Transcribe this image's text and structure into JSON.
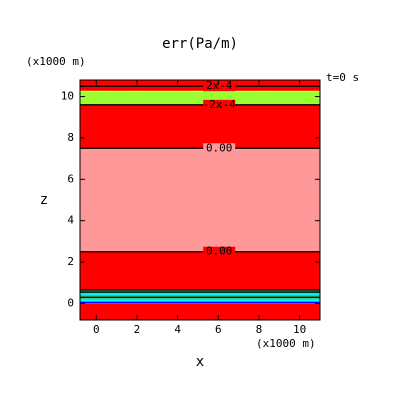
{
  "chart_data": {
    "type": "contour",
    "title": "err(Pa/m)",
    "y_unit": "(x1000 m)",
    "x_unit": "(x1000 m)",
    "time_label": "t=0 s",
    "xlabel": "x",
    "ylabel": "z",
    "xlim": [
      -0.8,
      11.0
    ],
    "ylim": [
      -0.8,
      10.8
    ],
    "xticks": [
      0,
      2,
      4,
      6,
      8,
      10
    ],
    "yticks": [
      0,
      2,
      4,
      6,
      8,
      10
    ],
    "bands": [
      {
        "range": [
          -0.8,
          0.0
        ],
        "color": "#ff0000"
      },
      {
        "range": [
          0.0,
          0.65
        ],
        "color": "#33cc99"
      },
      {
        "range": [
          0.65,
          2.5
        ],
        "color": "#ff0000"
      },
      {
        "range": [
          2.5,
          7.5
        ],
        "color": "#ff9999"
      },
      {
        "range": [
          7.5,
          9.6
        ],
        "color": "#ff0000"
      },
      {
        "range": [
          9.6,
          10.25
        ],
        "color": "#99ff33"
      },
      {
        "range": [
          10.25,
          10.8
        ],
        "color": "#ff0000"
      }
    ],
    "contours": [
      {
        "z": 0.05,
        "color": "#0000ff"
      },
      {
        "z": 0.15,
        "color": "#00ffff"
      },
      {
        "z": 0.3,
        "color": "#000000"
      },
      {
        "z": 0.45,
        "color": "#00ffff"
      },
      {
        "z": 0.55,
        "color": "#000000"
      },
      {
        "z": 0.65,
        "color": "#000000"
      },
      {
        "z": 2.5,
        "color": "#000000",
        "label": "0.00"
      },
      {
        "z": 7.5,
        "color": "#000000",
        "label": "0.00"
      },
      {
        "z": 9.6,
        "color": "#000000",
        "label": "-2x-4"
      },
      {
        "z": 10.25,
        "color": "#ffff00"
      },
      {
        "z": 10.5,
        "color": "#000000",
        "label": "2x-4"
      }
    ]
  }
}
